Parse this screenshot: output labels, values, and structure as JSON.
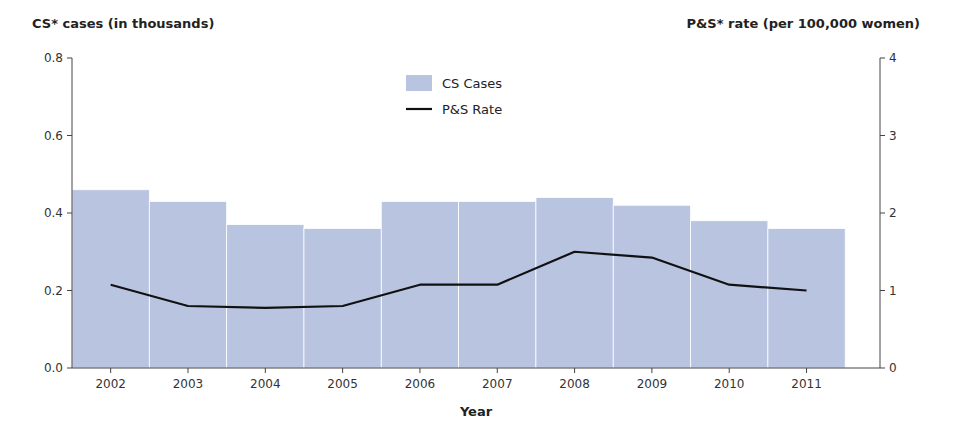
{
  "chart_data": {
    "type": "bar",
    "x_label": "Year",
    "y_label": "CS* cases (in thousands)",
    "y2_label": "P&S* rate (per 100,000 women)",
    "x": [
      2002,
      2003,
      2004,
      2005,
      2006,
      2007,
      2008,
      2009,
      2010,
      2011
    ],
    "xlim": [
      2001.5,
      2011.95
    ],
    "xticks": [
      2002,
      2003,
      2004,
      2005,
      2006,
      2007,
      2008,
      2009,
      2010,
      2011
    ],
    "ylim": [
      0,
      0.8
    ],
    "yticks": [
      {
        "value": 0,
        "label": "0.0"
      },
      0.2,
      0.4,
      0.6,
      0.8
    ],
    "y2lim": [
      0,
      4
    ],
    "y2ticks": [
      0,
      1,
      2,
      3,
      4
    ],
    "grid": false,
    "legend": "top",
    "series": [
      {
        "name": "CS Cases",
        "type": "bar",
        "color": "#b8c4e0",
        "values": [
          0.46,
          0.43,
          0.37,
          0.36,
          0.43,
          0.43,
          0.44,
          0.42,
          0.38,
          0.36
        ]
      },
      {
        "name": "P&S Rate",
        "type": "line",
        "color": "#111111",
        "axis": "y2",
        "values": [
          1.075,
          0.8,
          0.775,
          0.8,
          1.075,
          1.075,
          1.5,
          1.425,
          1.075,
          1.0
        ]
      }
    ]
  }
}
